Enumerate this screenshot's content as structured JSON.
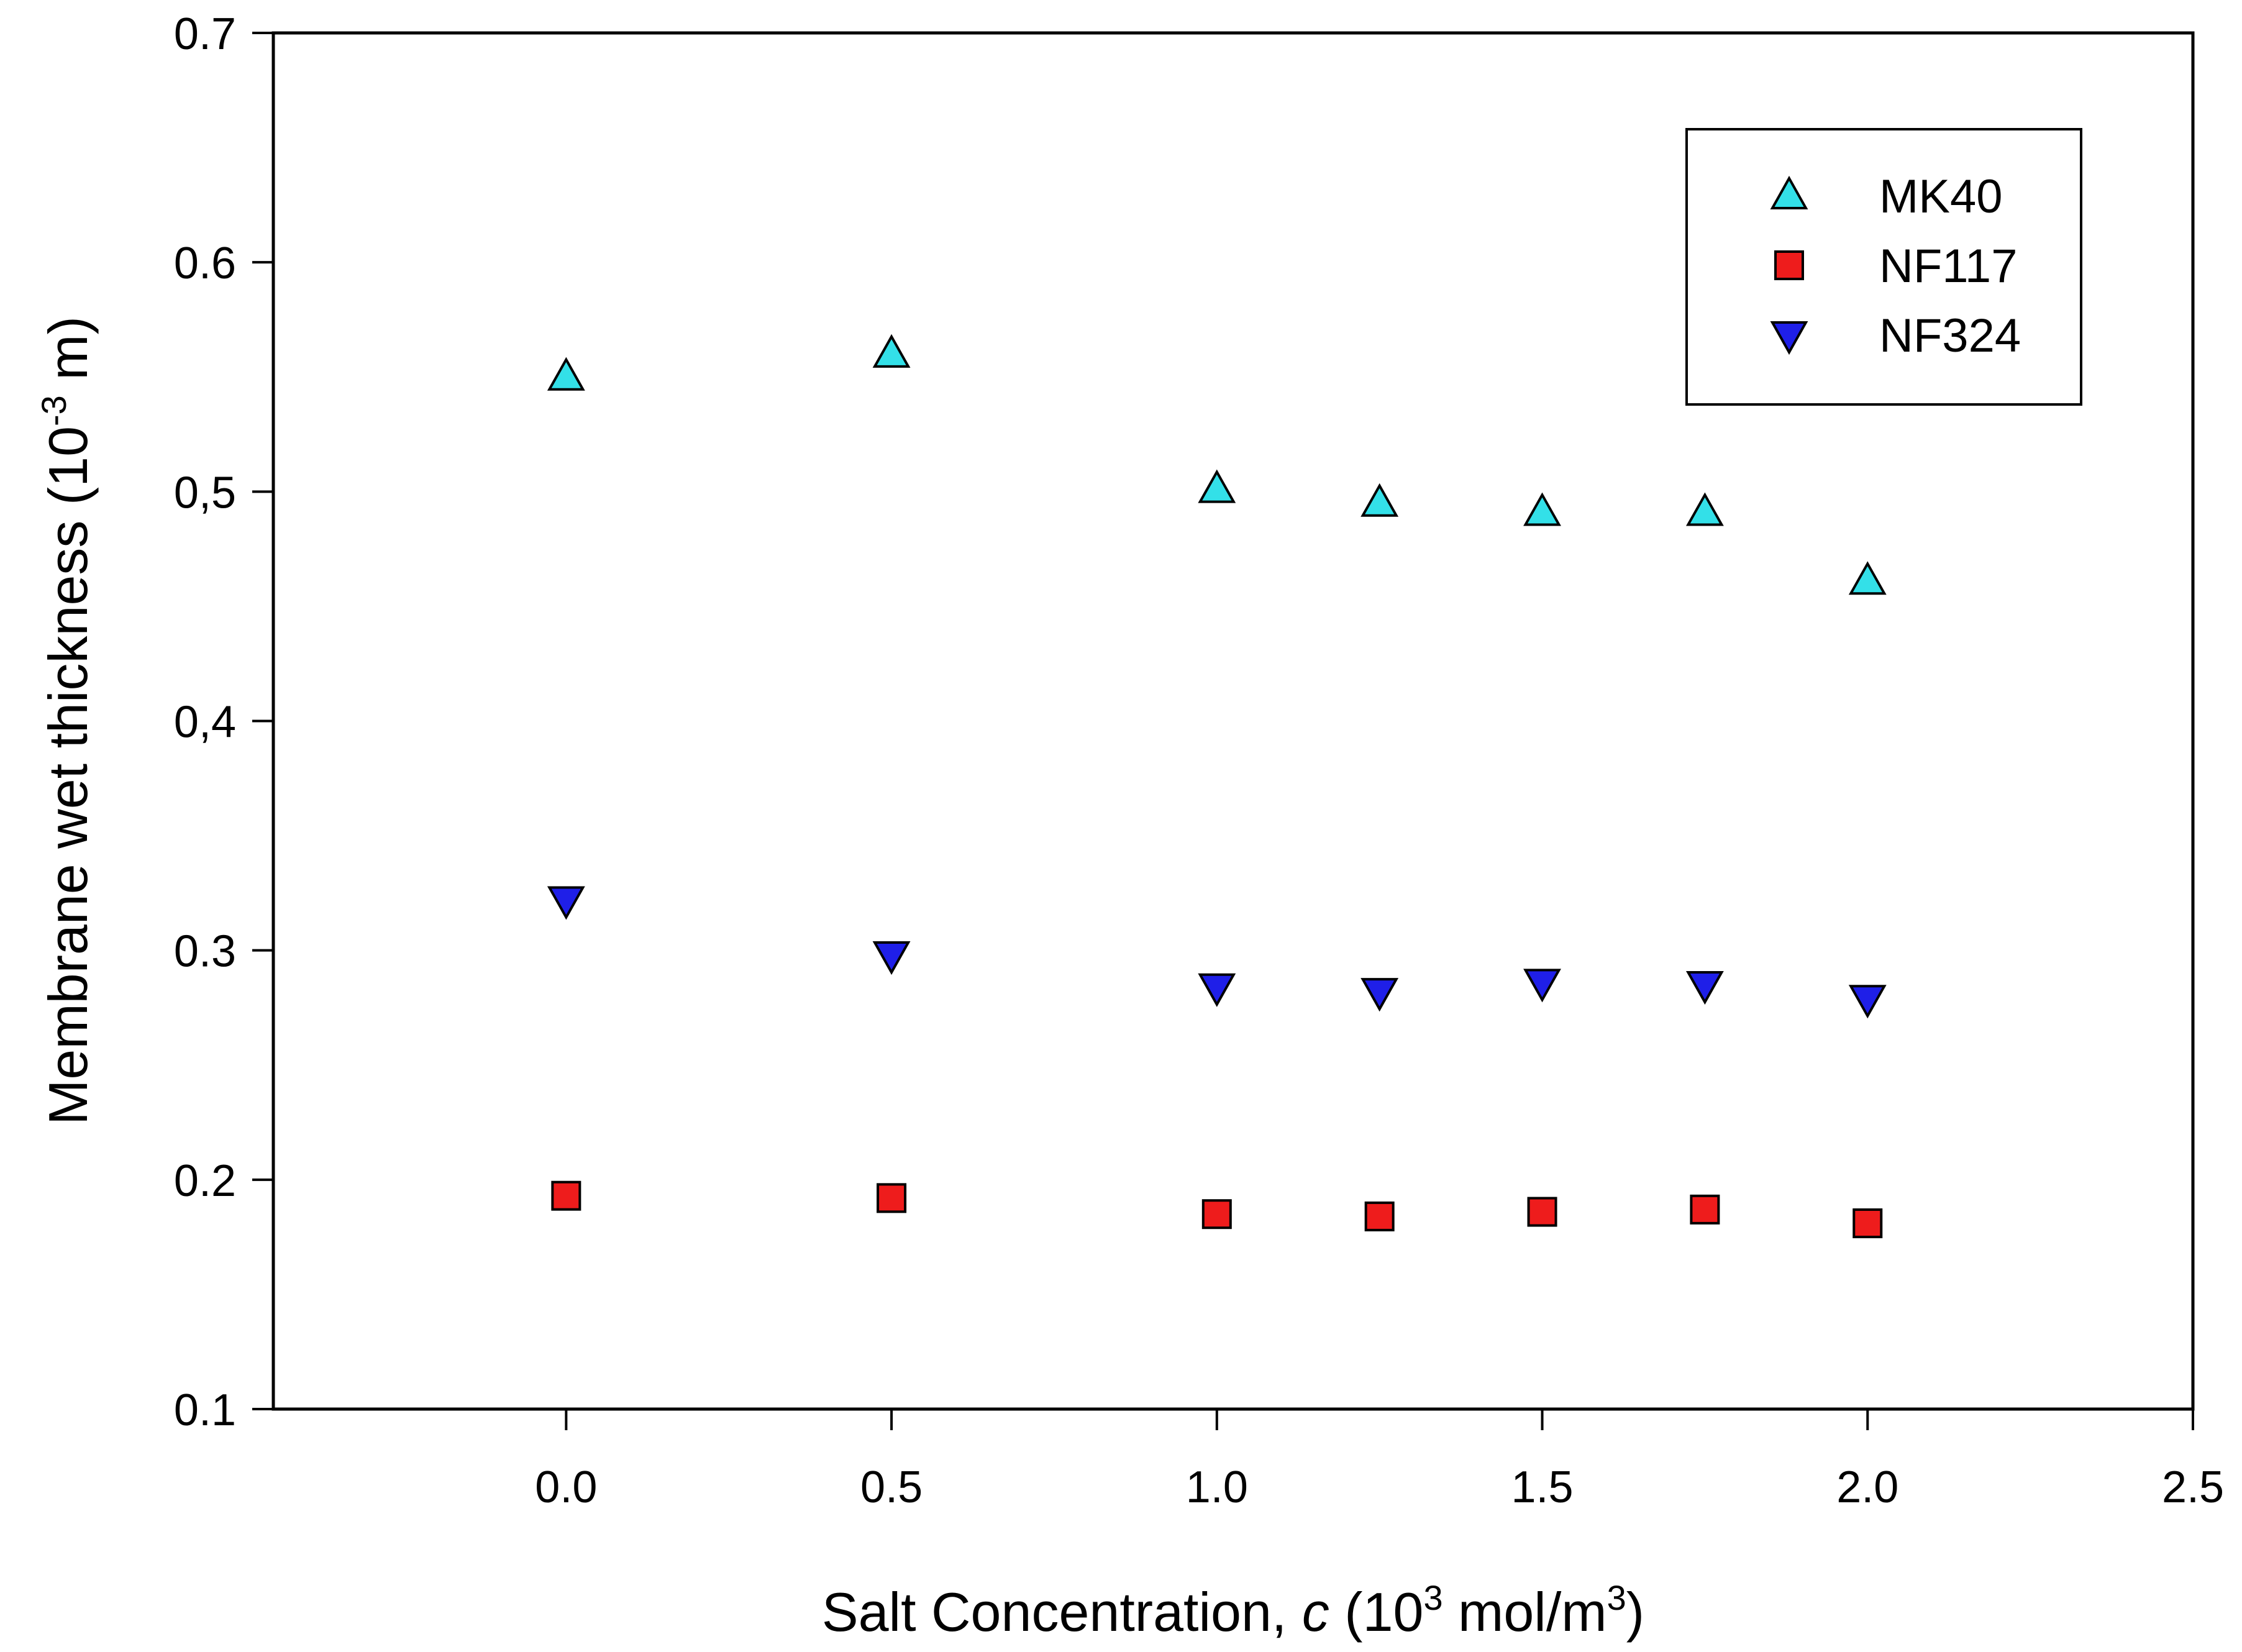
{
  "chart_data": {
    "type": "scatter",
    "xlabel": {
      "prefix": "Salt Concentration, ",
      "var": "c",
      "mid": " (10",
      "sup": "3",
      "unit_pre": " mol/m",
      "unit_sup": "3",
      "suffix": ")"
    },
    "ylabel": {
      "prefix": "Membrane wet thickness (10",
      "sup": "-3",
      "suffix": " m)"
    },
    "xlim": [
      -0.45,
      2.5
    ],
    "ylim": [
      0.1,
      0.7
    ],
    "x_ticks": [
      {
        "value": 0.0,
        "label": "0.0"
      },
      {
        "value": 0.5,
        "label": "0.5"
      },
      {
        "value": 1.0,
        "label": "1.0"
      },
      {
        "value": 1.5,
        "label": "1.5"
      },
      {
        "value": 2.0,
        "label": "2.0"
      },
      {
        "value": 2.5,
        "label": "2.5"
      }
    ],
    "y_ticks": [
      {
        "value": 0.1,
        "label": "0.1"
      },
      {
        "value": 0.2,
        "label": "0.2"
      },
      {
        "value": 0.3,
        "label": "0.3"
      },
      {
        "value": 0.4,
        "label": "0,4"
      },
      {
        "value": 0.5,
        "label": "0,5"
      },
      {
        "value": 0.6,
        "label": "0.6"
      },
      {
        "value": 0.7,
        "label": "0.7"
      }
    ],
    "grid": false,
    "legend_position": "top-right",
    "series": [
      {
        "name": "MK40",
        "marker": "triangle-up",
        "color": "#33E0E8",
        "x": [
          0.0,
          0.5,
          1.0,
          1.25,
          1.5,
          1.75,
          2.0
        ],
        "y": [
          0.55,
          0.56,
          0.501,
          0.495,
          0.491,
          0.491,
          0.461
        ]
      },
      {
        "name": "NF117",
        "marker": "square",
        "color": "#EE1C1C",
        "x": [
          0.0,
          0.5,
          1.0,
          1.25,
          1.5,
          1.75,
          2.0
        ],
        "y": [
          0.193,
          0.192,
          0.185,
          0.184,
          0.186,
          0.187,
          0.181
        ]
      },
      {
        "name": "NF324",
        "marker": "triangle-down",
        "color": "#1F1FE8",
        "x": [
          0.0,
          0.5,
          1.0,
          1.25,
          1.5,
          1.75,
          2.0
        ],
        "y": [
          0.322,
          0.298,
          0.284,
          0.282,
          0.286,
          0.285,
          0.279
        ]
      }
    ]
  }
}
